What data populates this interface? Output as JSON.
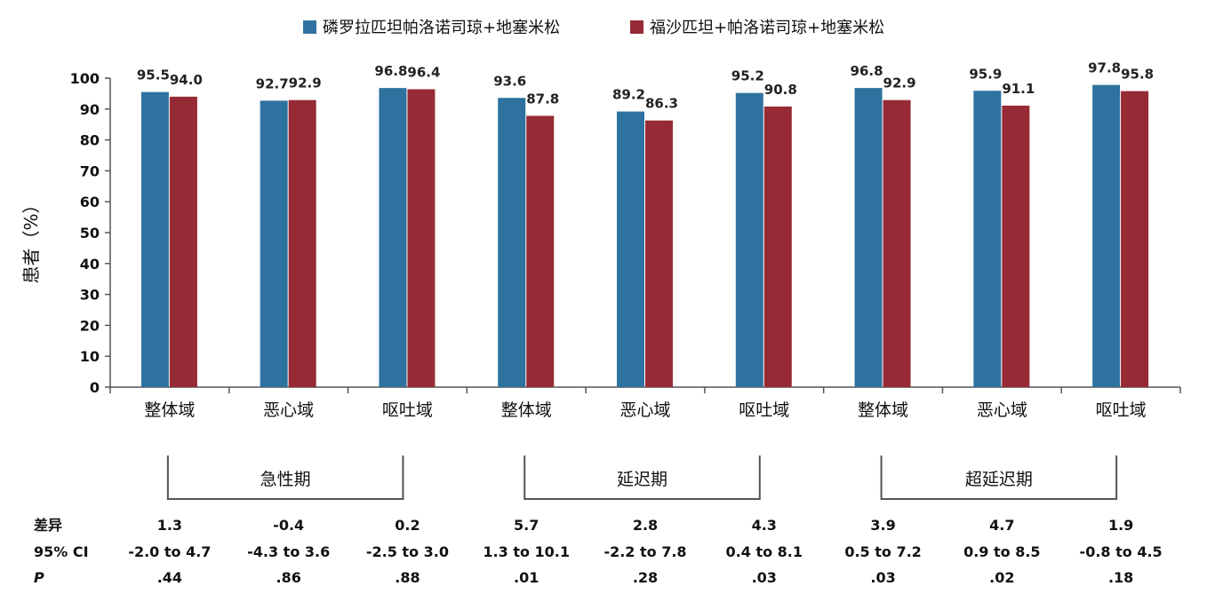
{
  "chart_data": {
    "type": "bar",
    "ylabel": "患者（%）",
    "ylim": [
      0,
      100
    ],
    "yticks": [
      0,
      10,
      20,
      30,
      40,
      50,
      60,
      70,
      80,
      90,
      100
    ],
    "categories": [
      "整体域",
      "恶心域",
      "呕吐域",
      "整体域",
      "恶心域",
      "呕吐域",
      "整体域",
      "恶心域",
      "呕吐域"
    ],
    "series": [
      {
        "name": "磷罗拉匹坦帕洛诺司琼+地塞米松",
        "color": "#2e72a0",
        "values": [
          95.5,
          92.7,
          96.8,
          93.6,
          89.2,
          95.2,
          96.8,
          95.9,
          97.8
        ],
        "labels": [
          "95.5",
          "92.7",
          "96.8",
          "93.6",
          "89.2",
          "95.2",
          "96.8",
          "95.9",
          "97.8"
        ]
      },
      {
        "name": "福沙匹坦+帕洛诺司琼+地塞米松",
        "color": "#962a35",
        "values": [
          94.0,
          92.9,
          96.4,
          87.8,
          86.3,
          90.8,
          92.9,
          91.1,
          95.8
        ],
        "labels": [
          "94.0",
          "92.9",
          "96.4",
          "87.8",
          "86.3",
          "90.8",
          "92.9",
          "91.1",
          "95.8"
        ]
      }
    ],
    "legend_position": "top-center",
    "grid": false,
    "phases": [
      "急性期",
      "延迟期",
      "超延迟期"
    ],
    "stats": {
      "diff_label": "差异",
      "ci_label": "95% CI",
      "p_label": "P",
      "diff": [
        "1.3",
        "-0.4",
        "0.2",
        "5.7",
        "2.8",
        "4.3",
        "3.9",
        "4.7",
        "1.9"
      ],
      "ci": [
        "-2.0 to 4.7",
        "-4.3 to 3.6",
        "-2.5 to 3.0",
        "1.3 to 10.1",
        "-2.2 to 7.8",
        "0.4 to 8.1",
        "0.5 to 7.2",
        "0.9 to 8.5",
        "-0.8 to 4.5"
      ],
      "p": [
        ".44",
        ".86",
        ".88",
        ".01",
        ".28",
        ".03",
        ".03",
        ".02",
        ".18"
      ]
    }
  }
}
